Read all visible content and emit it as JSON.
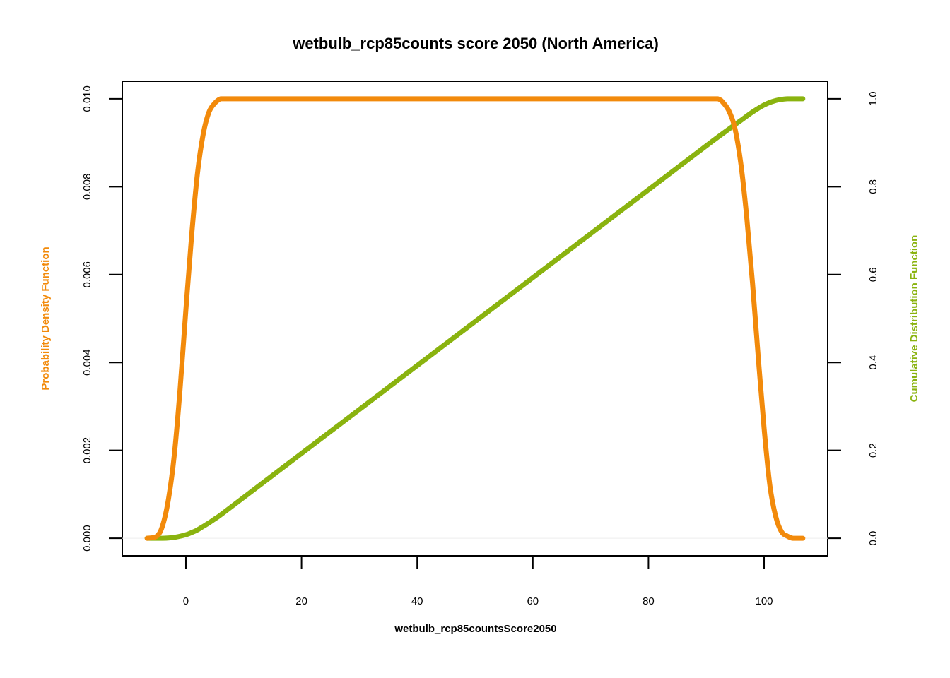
{
  "chart_data": {
    "type": "line",
    "title": "wetbulb_rcp85counts score 2050 (North America)",
    "xlabel": "wetbulb_rcp85countsScore2050",
    "ylabel_left": "Probability Density Function",
    "ylabel_right": "Cumulative Distribution Function",
    "xlim": [
      -11,
      111
    ],
    "ylim_left": [
      -0.0004,
      0.0104
    ],
    "ylim_right": [
      -0.04,
      1.04
    ],
    "x_ticks": [
      "0",
      "20",
      "40",
      "60",
      "80",
      "100"
    ],
    "y_ticks_left": [
      "0.000",
      "0.002",
      "0.004",
      "0.006",
      "0.008",
      "0.010"
    ],
    "y_ticks_right": [
      "0.0",
      "0.2",
      "0.4",
      "0.6",
      "0.8",
      "1.0"
    ],
    "grid": false,
    "legend": "none",
    "series": [
      {
        "axis": "left",
        "color": "#F28A0B",
        "x": [
          -6.7,
          -5,
          -4,
          -3,
          -2,
          -1,
          0,
          1,
          2,
          3,
          4,
          5,
          6,
          7,
          8,
          10,
          20,
          40,
          60,
          80,
          90,
          92,
          93,
          94,
          95,
          96,
          97,
          98,
          99,
          100,
          101,
          102,
          103,
          104,
          105,
          106.7
        ],
        "values": [
          0.0,
          5e-05,
          0.0003,
          0.0009,
          0.0019,
          0.0034,
          0.0052,
          0.0069,
          0.0083,
          0.0092,
          0.0097,
          0.0099,
          0.01,
          0.01,
          0.01,
          0.01,
          0.01,
          0.01,
          0.01,
          0.01,
          0.01,
          0.01,
          0.0099,
          0.0097,
          0.0093,
          0.0085,
          0.0073,
          0.0058,
          0.0041,
          0.0025,
          0.0012,
          0.0005,
          0.00015,
          5e-05,
          0.0,
          0.0
        ]
      },
      {
        "axis": "right",
        "color": "#8AB30F",
        "x": [
          -6.7,
          -4,
          -2,
          0,
          1,
          2,
          3,
          4,
          5,
          6,
          10,
          20,
          40,
          60,
          80,
          90,
          94,
          96,
          98,
          100,
          102,
          104,
          106.7
        ],
        "values": [
          0.0,
          0.0,
          0.002,
          0.008,
          0.013,
          0.019,
          0.027,
          0.035,
          0.044,
          0.053,
          0.093,
          0.193,
          0.393,
          0.593,
          0.793,
          0.893,
          0.932,
          0.951,
          0.97,
          0.986,
          0.996,
          1.0,
          1.0
        ]
      }
    ]
  }
}
